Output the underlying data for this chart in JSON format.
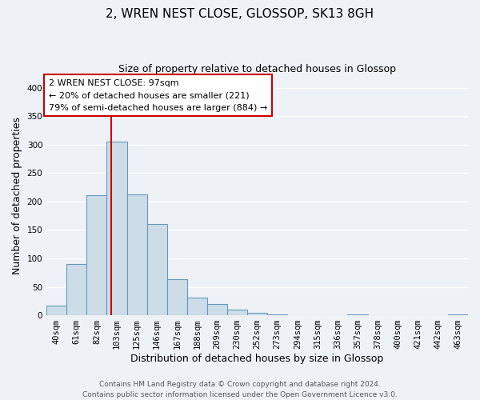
{
  "title": "2, WREN NEST CLOSE, GLOSSOP, SK13 8GH",
  "subtitle": "Size of property relative to detached houses in Glossop",
  "xlabel": "Distribution of detached houses by size in Glossop",
  "ylabel": "Number of detached properties",
  "bin_labels": [
    "40sqm",
    "61sqm",
    "82sqm",
    "103sqm",
    "125sqm",
    "146sqm",
    "167sqm",
    "188sqm",
    "209sqm",
    "230sqm",
    "252sqm",
    "273sqm",
    "294sqm",
    "315sqm",
    "336sqm",
    "357sqm",
    "378sqm",
    "400sqm",
    "421sqm",
    "442sqm",
    "463sqm"
  ],
  "bar_heights": [
    17,
    90,
    211,
    305,
    213,
    160,
    64,
    31,
    20,
    10,
    5,
    2,
    0,
    0,
    0,
    2,
    0,
    0,
    0,
    0,
    2
  ],
  "bar_color": "#ccdde8",
  "bar_edge_color": "#6699bb",
  "vline_color": "#cc0000",
  "vline_pos": 2.714,
  "ylim": [
    0,
    420
  ],
  "yticks": [
    0,
    50,
    100,
    150,
    200,
    250,
    300,
    350,
    400
  ],
  "annotation_title": "2 WREN NEST CLOSE: 97sqm",
  "annotation_line1": "← 20% of detached houses are smaller (221)",
  "annotation_line2": "79% of semi-detached houses are larger (884) →",
  "annotation_box_color": "#ffffff",
  "annotation_box_edge": "#cc0000",
  "footer_line1": "Contains HM Land Registry data © Crown copyright and database right 2024.",
  "footer_line2": "Contains public sector information licensed under the Open Government Licence v3.0.",
  "background_color": "#eef2f7",
  "grid_color": "#ffffff",
  "title_fontsize": 11,
  "subtitle_fontsize": 9,
  "axis_label_fontsize": 9,
  "tick_fontsize": 7.5,
  "footer_fontsize": 6.5
}
